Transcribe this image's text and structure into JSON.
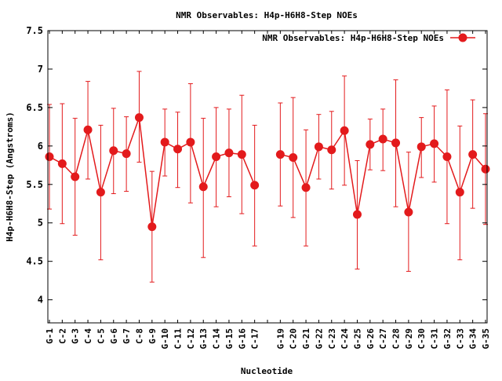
{
  "chart_data": {
    "type": "line",
    "title": "NMR Observables: H4p-H6H8-Step NOEs",
    "xlabel": "Nucleotide",
    "ylabel": "H4p-H6H8-Step (Angstroms)",
    "ylim": [
      3.7,
      7.5
    ],
    "yticks": [
      "4",
      "4.5",
      "5",
      "5.5",
      "6",
      "6.5",
      "7",
      "7.5"
    ],
    "grid": false,
    "legend_position": "top-right",
    "series_color": "#e31a1c",
    "categories": [
      "G-1",
      "C-2",
      "G-3",
      "C-4",
      "C-5",
      "G-6",
      "G-7",
      "C-8",
      "G-9",
      "G-10",
      "C-11",
      "C-12",
      "G-13",
      "C-14",
      "G-15",
      "G-16",
      "C-17",
      "",
      "G-19",
      "C-20",
      "G-21",
      "G-22",
      "C-23",
      "C-24",
      "G-25",
      "G-26",
      "C-27",
      "C-28",
      "G-29",
      "C-30",
      "C-31",
      "G-32",
      "C-33",
      "G-34",
      "G-35"
    ],
    "series": [
      {
        "name": "NMR Observables: H4p-H6H8-Step NOEs",
        "values": [
          5.86,
          5.77,
          5.6,
          6.21,
          5.4,
          5.94,
          5.9,
          6.37,
          4.95,
          6.05,
          5.96,
          6.05,
          5.47,
          5.86,
          5.91,
          5.89,
          5.49,
          null,
          5.89,
          5.85,
          5.46,
          5.99,
          5.95,
          6.2,
          5.11,
          6.02,
          6.09,
          6.04,
          5.14,
          5.99,
          6.03,
          5.86,
          5.4,
          5.89,
          5.7
        ],
        "error_low": [
          5.18,
          4.99,
          4.84,
          5.57,
          4.52,
          5.38,
          5.41,
          5.79,
          4.23,
          5.61,
          5.46,
          5.26,
          4.55,
          5.21,
          5.34,
          5.12,
          4.7,
          null,
          5.22,
          5.07,
          4.7,
          5.57,
          5.44,
          5.49,
          4.4,
          5.69,
          5.68,
          5.21,
          4.37,
          5.59,
          5.53,
          4.99,
          4.52,
          5.19,
          4.98
        ],
        "error_high": [
          6.54,
          6.55,
          6.36,
          6.84,
          6.27,
          6.49,
          6.38,
          6.97,
          5.67,
          6.48,
          6.44,
          6.81,
          6.36,
          6.5,
          6.48,
          6.66,
          6.27,
          null,
          6.56,
          6.63,
          6.21,
          6.41,
          6.45,
          6.91,
          5.81,
          6.35,
          6.48,
          6.86,
          5.92,
          6.37,
          6.52,
          6.73,
          6.26,
          6.6,
          6.42
        ]
      }
    ]
  }
}
